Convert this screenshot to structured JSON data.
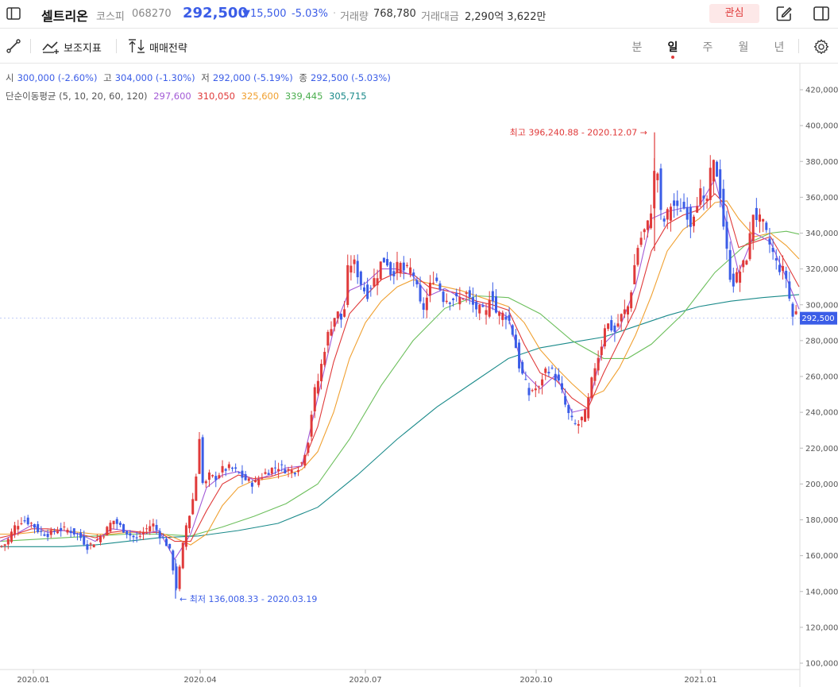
{
  "header": {
    "stock_name": "셀트리온",
    "market": "코스피",
    "code": "068270",
    "price": "292,500",
    "change": "▼15,500",
    "change_pct": "-5.03%",
    "separator": "·",
    "volume_label": "거래량",
    "volume_value": "768,780",
    "amount_label": "거래대금",
    "amount_value": "2,290억 3,622만",
    "favorite_label": "관심"
  },
  "toolbar": {
    "indicators_label": "보조지표",
    "strategy_label": "매매전략",
    "periods": [
      "분",
      "일",
      "주",
      "월",
      "년"
    ],
    "active_period": "일"
  },
  "legend": {
    "open_label": "시",
    "open_value": "300,000 (-2.60%)",
    "high_label": "고",
    "high_value": "304,000 (-1.30%)",
    "low_label": "저",
    "low_value": "292,000 (-5.19%)",
    "close_label": "종",
    "close_value": "292,500 (-5.03%)",
    "ma_label": "단순이동평균 (5, 10, 20, 60, 120)",
    "ma_values": [
      {
        "value": "297,600",
        "color": "#a35ad6"
      },
      {
        "value": "310,050",
        "color": "#e03a3a"
      },
      {
        "value": "325,600",
        "color": "#f0a030"
      },
      {
        "value": "339,445",
        "color": "#4caf50"
      },
      {
        "value": "305,715",
        "color": "#1a8a8a"
      }
    ]
  },
  "chart_data": {
    "type": "candlestick",
    "ylim": [
      100000,
      420000
    ],
    "y_ticks": [
      "420,000",
      "400,000",
      "380,000",
      "360,000",
      "340,000",
      "320,000",
      "300,000",
      "280,000",
      "260,000",
      "240,000",
      "220,000",
      "200,000",
      "180,000",
      "160,000",
      "140,000",
      "120,000",
      "100,000"
    ],
    "x_ticks": [
      "2020.01",
      "2020.04",
      "2020.07",
      "2020.10",
      "2021.01"
    ],
    "current_price_label": "292,500",
    "high_annotation": "최고 396,240.88 - 2020.12.07",
    "low_annotation": "최저 136,008.33 - 2020.03.19",
    "up_color": "#e03a3a",
    "down_color": "#3b5de7",
    "price_path": [
      [
        0,
        165000
      ],
      [
        8,
        167000
      ],
      [
        18,
        176000
      ],
      [
        28,
        180000
      ],
      [
        40,
        178000
      ],
      [
        50,
        173000
      ],
      [
        62,
        172000
      ],
      [
        75,
        175000
      ],
      [
        88,
        174000
      ],
      [
        100,
        171000
      ],
      [
        110,
        165000
      ],
      [
        120,
        168000
      ],
      [
        132,
        173000
      ],
      [
        142,
        180000
      ],
      [
        152,
        176000
      ],
      [
        162,
        172000
      ],
      [
        172,
        169000
      ],
      [
        182,
        174000
      ],
      [
        192,
        178000
      ],
      [
        200,
        172000
      ],
      [
        208,
        168000
      ],
      [
        216,
        160000
      ],
      [
        221,
        140000
      ],
      [
        227,
        155000
      ],
      [
        233,
        175000
      ],
      [
        240,
        185000
      ],
      [
        246,
        200000
      ],
      [
        251,
        227000
      ],
      [
        256,
        195000
      ],
      [
        262,
        205000
      ],
      [
        270,
        203000
      ],
      [
        280,
        208000
      ],
      [
        290,
        209000
      ],
      [
        300,
        206000
      ],
      [
        310,
        202000
      ],
      [
        320,
        200000
      ],
      [
        330,
        205000
      ],
      [
        340,
        208000
      ],
      [
        350,
        210000
      ],
      [
        360,
        208000
      ],
      [
        370,
        207000
      ],
      [
        380,
        212000
      ],
      [
        388,
        225000
      ],
      [
        395,
        250000
      ],
      [
        402,
        260000
      ],
      [
        408,
        275000
      ],
      [
        414,
        285000
      ],
      [
        420,
        293000
      ],
      [
        426,
        295000
      ],
      [
        432,
        290000
      ],
      [
        438,
        320000
      ],
      [
        444,
        325000
      ],
      [
        450,
        318000
      ],
      [
        456,
        310000
      ],
      [
        462,
        306000
      ],
      [
        468,
        312000
      ],
      [
        474,
        316000
      ],
      [
        480,
        324000
      ],
      [
        486,
        326000
      ],
      [
        492,
        318000
      ],
      [
        498,
        320000
      ],
      [
        504,
        322000
      ],
      [
        510,
        318000
      ],
      [
        516,
        320000
      ],
      [
        522,
        316000
      ],
      [
        528,
        300000
      ],
      [
        534,
        298000
      ],
      [
        540,
        308000
      ],
      [
        546,
        316000
      ],
      [
        552,
        312000
      ],
      [
        558,
        304000
      ],
      [
        564,
        303000
      ],
      [
        570,
        304000
      ],
      [
        576,
        302000
      ],
      [
        582,
        305000
      ],
      [
        588,
        306000
      ],
      [
        594,
        300000
      ],
      [
        600,
        298000
      ],
      [
        606,
        296000
      ],
      [
        612,
        295000
      ],
      [
        618,
        310000
      ],
      [
        624,
        296000
      ],
      [
        630,
        294000
      ],
      [
        636,
        295000
      ],
      [
        642,
        290000
      ],
      [
        648,
        280000
      ],
      [
        654,
        265000
      ],
      [
        660,
        258000
      ],
      [
        666,
        250000
      ],
      [
        672,
        254000
      ],
      [
        678,
        252000
      ],
      [
        684,
        262000
      ],
      [
        690,
        265000
      ],
      [
        696,
        262000
      ],
      [
        702,
        258000
      ],
      [
        708,
        250000
      ],
      [
        714,
        240000
      ],
      [
        720,
        235000
      ],
      [
        726,
        232000
      ],
      [
        732,
        236000
      ],
      [
        738,
        240000
      ],
      [
        744,
        255000
      ],
      [
        750,
        268000
      ],
      [
        756,
        275000
      ],
      [
        762,
        290000
      ],
      [
        768,
        288000
      ],
      [
        774,
        285000
      ],
      [
        780,
        292000
      ],
      [
        786,
        296000
      ],
      [
        792,
        300000
      ],
      [
        798,
        320000
      ],
      [
        804,
        335000
      ],
      [
        810,
        340000
      ],
      [
        816,
        345000
      ],
      [
        822,
        360000
      ],
      [
        826,
        390000
      ],
      [
        830,
        355000
      ],
      [
        834,
        345000
      ],
      [
        840,
        350000
      ],
      [
        846,
        358000
      ],
      [
        852,
        352000
      ],
      [
        858,
        355000
      ],
      [
        864,
        353000
      ],
      [
        870,
        345000
      ],
      [
        876,
        358000
      ],
      [
        882,
        362000
      ],
      [
        888,
        352000
      ],
      [
        894,
        372000
      ],
      [
        900,
        380000
      ],
      [
        906,
        365000
      ],
      [
        912,
        340000
      ],
      [
        918,
        318000
      ],
      [
        924,
        312000
      ],
      [
        930,
        318000
      ],
      [
        936,
        322000
      ],
      [
        942,
        330000
      ],
      [
        948,
        352000
      ],
      [
        954,
        348000
      ],
      [
        960,
        345000
      ],
      [
        966,
        337000
      ],
      [
        972,
        330000
      ],
      [
        978,
        322000
      ],
      [
        984,
        320000
      ],
      [
        990,
        315000
      ],
      [
        996,
        297000
      ],
      [
        1000,
        290000
      ],
      [
        1003,
        298000
      ],
      [
        1006,
        292500
      ]
    ],
    "ma5_path": [
      [
        0,
        168000
      ],
      [
        20,
        172000
      ],
      [
        40,
        177000
      ],
      [
        60,
        173000
      ],
      [
        80,
        174000
      ],
      [
        100,
        172000
      ],
      [
        120,
        168000
      ],
      [
        140,
        175000
      ],
      [
        160,
        174000
      ],
      [
        180,
        172000
      ],
      [
        200,
        174000
      ],
      [
        220,
        158000
      ],
      [
        240,
        172000
      ],
      [
        260,
        198000
      ],
      [
        280,
        205000
      ],
      [
        300,
        207000
      ],
      [
        320,
        202000
      ],
      [
        340,
        205000
      ],
      [
        360,
        209000
      ],
      [
        380,
        210000
      ],
      [
        400,
        248000
      ],
      [
        420,
        286000
      ],
      [
        440,
        308000
      ],
      [
        460,
        312000
      ],
      [
        480,
        320000
      ],
      [
        500,
        320000
      ],
      [
        520,
        316000
      ],
      [
        540,
        305000
      ],
      [
        560,
        309000
      ],
      [
        580,
        304000
      ],
      [
        600,
        301000
      ],
      [
        620,
        298000
      ],
      [
        640,
        293000
      ],
      [
        660,
        262000
      ],
      [
        680,
        253000
      ],
      [
        700,
        261000
      ],
      [
        720,
        240000
      ],
      [
        740,
        242000
      ],
      [
        760,
        278000
      ],
      [
        780,
        287000
      ],
      [
        800,
        310000
      ],
      [
        820,
        348000
      ],
      [
        840,
        352000
      ],
      [
        860,
        354000
      ],
      [
        880,
        355000
      ],
      [
        900,
        370000
      ],
      [
        915,
        345000
      ],
      [
        930,
        318000
      ],
      [
        950,
        340000
      ],
      [
        970,
        335000
      ],
      [
        990,
        315000
      ],
      [
        1006,
        297600
      ]
    ],
    "ma10_path": [
      [
        0,
        170000
      ],
      [
        20,
        172000
      ],
      [
        40,
        175000
      ],
      [
        60,
        175000
      ],
      [
        80,
        174000
      ],
      [
        100,
        172000
      ],
      [
        120,
        170000
      ],
      [
        140,
        173000
      ],
      [
        160,
        174000
      ],
      [
        180,
        173000
      ],
      [
        200,
        173000
      ],
      [
        220,
        168000
      ],
      [
        240,
        168000
      ],
      [
        260,
        185000
      ],
      [
        280,
        200000
      ],
      [
        300,
        205000
      ],
      [
        320,
        203000
      ],
      [
        340,
        204000
      ],
      [
        360,
        207000
      ],
      [
        380,
        210000
      ],
      [
        400,
        232000
      ],
      [
        420,
        268000
      ],
      [
        440,
        295000
      ],
      [
        460,
        305000
      ],
      [
        480,
        314000
      ],
      [
        500,
        318000
      ],
      [
        520,
        317000
      ],
      [
        540,
        310000
      ],
      [
        560,
        308000
      ],
      [
        580,
        306000
      ],
      [
        600,
        302000
      ],
      [
        620,
        300000
      ],
      [
        640,
        297000
      ],
      [
        660,
        278000
      ],
      [
        680,
        262000
      ],
      [
        700,
        258000
      ],
      [
        720,
        248000
      ],
      [
        740,
        242000
      ],
      [
        760,
        262000
      ],
      [
        780,
        280000
      ],
      [
        800,
        298000
      ],
      [
        820,
        330000
      ],
      [
        840,
        345000
      ],
      [
        860,
        350000
      ],
      [
        880,
        353000
      ],
      [
        900,
        362000
      ],
      [
        915,
        355000
      ],
      [
        930,
        332000
      ],
      [
        950,
        335000
      ],
      [
        970,
        338000
      ],
      [
        990,
        323000
      ],
      [
        1006,
        310050
      ]
    ],
    "ma20_path": [
      [
        0,
        172000
      ],
      [
        20,
        172000
      ],
      [
        40,
        173000
      ],
      [
        60,
        174000
      ],
      [
        80,
        174000
      ],
      [
        100,
        173000
      ],
      [
        120,
        172000
      ],
      [
        140,
        172000
      ],
      [
        160,
        173000
      ],
      [
        180,
        173000
      ],
      [
        200,
        173000
      ],
      [
        220,
        170000
      ],
      [
        240,
        166000
      ],
      [
        260,
        172000
      ],
      [
        280,
        188000
      ],
      [
        300,
        198000
      ],
      [
        320,
        202000
      ],
      [
        340,
        203000
      ],
      [
        360,
        205000
      ],
      [
        380,
        208000
      ],
      [
        400,
        218000
      ],
      [
        420,
        240000
      ],
      [
        440,
        270000
      ],
      [
        460,
        290000
      ],
      [
        480,
        302000
      ],
      [
        500,
        310000
      ],
      [
        520,
        314000
      ],
      [
        540,
        312000
      ],
      [
        560,
        310000
      ],
      [
        580,
        308000
      ],
      [
        600,
        305000
      ],
      [
        620,
        302000
      ],
      [
        640,
        299000
      ],
      [
        660,
        290000
      ],
      [
        680,
        275000
      ],
      [
        700,
        265000
      ],
      [
        720,
        256000
      ],
      [
        740,
        248000
      ],
      [
        760,
        252000
      ],
      [
        780,
        265000
      ],
      [
        800,
        283000
      ],
      [
        820,
        305000
      ],
      [
        840,
        330000
      ],
      [
        860,
        342000
      ],
      [
        880,
        348000
      ],
      [
        900,
        357000
      ],
      [
        915,
        358000
      ],
      [
        930,
        348000
      ],
      [
        950,
        338000
      ],
      [
        970,
        340000
      ],
      [
        990,
        333000
      ],
      [
        1006,
        325600
      ]
    ],
    "ma60_path": [
      [
        0,
        168000
      ],
      [
        40,
        169000
      ],
      [
        80,
        170000
      ],
      [
        120,
        171000
      ],
      [
        160,
        172000
      ],
      [
        200,
        172000
      ],
      [
        240,
        171000
      ],
      [
        280,
        176000
      ],
      [
        320,
        182000
      ],
      [
        360,
        189000
      ],
      [
        400,
        200000
      ],
      [
        440,
        225000
      ],
      [
        480,
        255000
      ],
      [
        520,
        280000
      ],
      [
        560,
        298000
      ],
      [
        600,
        305000
      ],
      [
        640,
        304000
      ],
      [
        680,
        295000
      ],
      [
        720,
        280000
      ],
      [
        760,
        270000
      ],
      [
        790,
        270000
      ],
      [
        820,
        278000
      ],
      [
        860,
        295000
      ],
      [
        900,
        318000
      ],
      [
        940,
        334000
      ],
      [
        970,
        340000
      ],
      [
        990,
        341000
      ],
      [
        1006,
        339445
      ]
    ],
    "ma120_path": [
      [
        0,
        165000
      ],
      [
        40,
        165000
      ],
      [
        80,
        165000
      ],
      [
        120,
        166000
      ],
      [
        160,
        168000
      ],
      [
        200,
        170000
      ],
      [
        250,
        171000
      ],
      [
        300,
        174000
      ],
      [
        350,
        178000
      ],
      [
        400,
        187000
      ],
      [
        450,
        205000
      ],
      [
        500,
        225000
      ],
      [
        550,
        243000
      ],
      [
        600,
        258000
      ],
      [
        640,
        270000
      ],
      [
        680,
        276000
      ],
      [
        720,
        279000
      ],
      [
        760,
        282000
      ],
      [
        800,
        288000
      ],
      [
        840,
        294000
      ],
      [
        880,
        299000
      ],
      [
        920,
        302000
      ],
      [
        960,
        304000
      ],
      [
        1006,
        305715
      ]
    ]
  }
}
